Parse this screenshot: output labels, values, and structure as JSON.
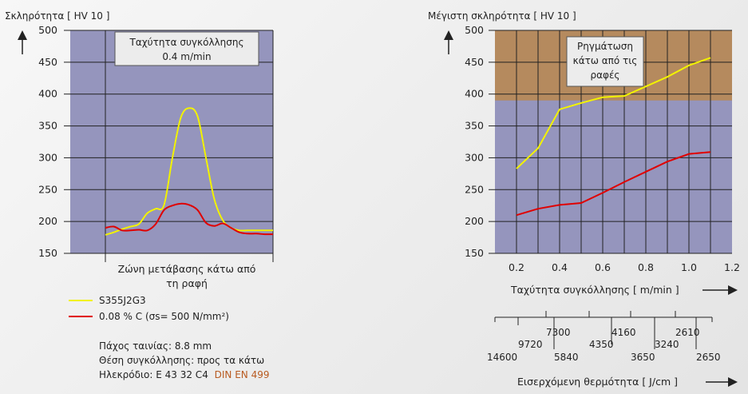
{
  "left_chart": {
    "ylabel": "Σκληρότητα [ HV 10 ]",
    "ylim": [
      150,
      500
    ],
    "yticks": [
      150,
      200,
      250,
      300,
      350,
      400,
      450,
      500
    ],
    "box_line1": "Ταχύτητα συγκόλλησης",
    "box_line2": "0.4 m/min",
    "xlabel_line1": "Ζώνη μετάβασης κάτω από",
    "xlabel_line2": "τη ραφή"
  },
  "legend": [
    {
      "label": "S355J2G3",
      "color": "#f2f200"
    },
    {
      "label": "0.08 % C (σs= 500 N/mm²)",
      "color": "#e00000"
    }
  ],
  "info": {
    "line1": "Πάχος ταινίας: 8.8 mm",
    "line2": "Θέση συγκόλλησης: προς τα κάτω",
    "line3_prefix": "Ηλεκρόδιο: E 43 32 C4",
    "line3_link": "DIN EN 499"
  },
  "right_chart": {
    "ylabel": "Μέγιστη σκληρότητα [ HV 10 ]",
    "ylim": [
      150,
      500
    ],
    "yticks": [
      150,
      200,
      250,
      300,
      350,
      400,
      450,
      500
    ],
    "xlim": [
      0.1,
      1.2
    ],
    "xticks": [
      "0.2",
      "0.4",
      "0.6",
      "0.8",
      "1.0",
      "1.2"
    ],
    "xlabel": "Ταχύτητα συγκόλλησης [ m/min ]",
    "crack_threshold": 390,
    "box_lines": [
      "Ρηγμάτωση",
      "κάτω από τις",
      "ραφές"
    ],
    "heat_upper": [
      "7300",
      "4160",
      "2610"
    ],
    "heat_middle": [
      "9720",
      "4350",
      "3240"
    ],
    "heat_lower": [
      "14600",
      "5840",
      "3650",
      "2650"
    ],
    "heat_label": "Εισερχόμενη θερμότητα [ J/cm ]"
  },
  "colors": {
    "plot_bg": "#9595bd",
    "crack_zone": "#b58a5e",
    "series1": "#f2f200",
    "series2": "#e00000"
  },
  "chart_data": [
    {
      "type": "line",
      "ylabel": "Σκληρότητα [ HV 10 ]",
      "xlabel": "Ζώνη μετάβασης κάτω από τη ραφή",
      "ylim": [
        150,
        500
      ],
      "x": [
        0,
        5,
        10,
        15,
        20,
        25,
        30,
        35,
        40,
        45,
        50,
        55,
        60,
        65,
        70,
        75,
        80,
        85,
        90,
        95,
        100
      ],
      "series": [
        {
          "name": "S355J2G3",
          "values": [
            179,
            183,
            188,
            192,
            196,
            213,
            220,
            226,
            300,
            363,
            378,
            365,
            300,
            235,
            202,
            190,
            186,
            186,
            186,
            186,
            186
          ]
        },
        {
          "name": "0.08 % C (σs= 500 N/mm²)",
          "values": [
            190,
            192,
            186,
            186,
            187,
            186,
            196,
            218,
            225,
            228,
            226,
            218,
            198,
            193,
            197,
            190,
            183,
            181,
            181,
            180,
            180
          ]
        }
      ]
    },
    {
      "type": "line",
      "ylabel": "Μέγιστη σκληρότητα [ HV 10 ]",
      "xlabel": "Ταχύτητα συγκόλλησης [ m/min ]",
      "xlim": [
        0.1,
        1.2
      ],
      "ylim": [
        150,
        500
      ],
      "x": [
        0.2,
        0.3,
        0.4,
        0.5,
        0.6,
        0.7,
        0.8,
        0.9,
        1.0,
        1.1
      ],
      "series": [
        {
          "name": "S355J2G3",
          "values": [
            283,
            315,
            376,
            386,
            395,
            397,
            412,
            427,
            445,
            457
          ]
        },
        {
          "name": "0.08 % C (σs= 500 N/mm²)",
          "values": [
            210,
            220,
            226,
            229,
            245,
            262,
            278,
            294,
            306,
            309
          ]
        }
      ]
    }
  ]
}
